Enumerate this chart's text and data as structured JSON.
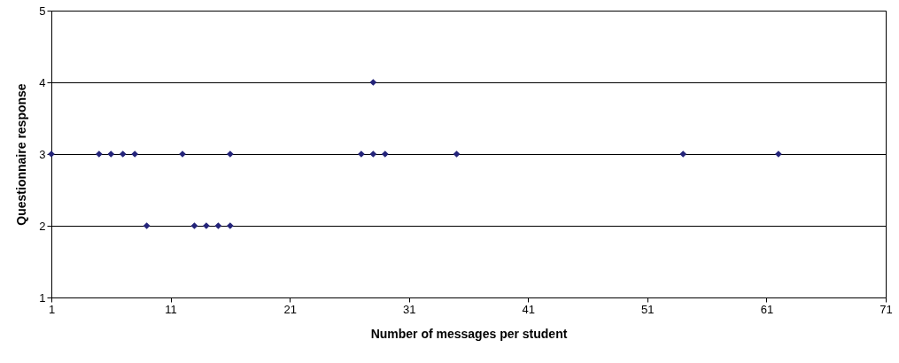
{
  "chart_data": {
    "type": "scatter",
    "xlabel": "Number of messages per student",
    "ylabel": "Questionnaire response",
    "x": [
      1,
      5,
      6,
      7,
      8,
      12,
      16,
      27,
      28,
      29,
      35,
      54,
      62,
      28,
      9,
      13,
      14,
      15,
      16
    ],
    "values": [
      3,
      3,
      3,
      3,
      3,
      3,
      3,
      3,
      3,
      3,
      3,
      3,
      3,
      4,
      2,
      2,
      2,
      2,
      2
    ],
    "color": "#24247a",
    "marker": "diamond",
    "grid": "y",
    "xlim": [
      1,
      71
    ],
    "xticks": [
      1,
      11,
      21,
      31,
      41,
      51,
      61,
      71
    ],
    "ylim": [
      1,
      5
    ],
    "yticks": [
      1,
      2,
      3,
      4,
      5
    ]
  }
}
